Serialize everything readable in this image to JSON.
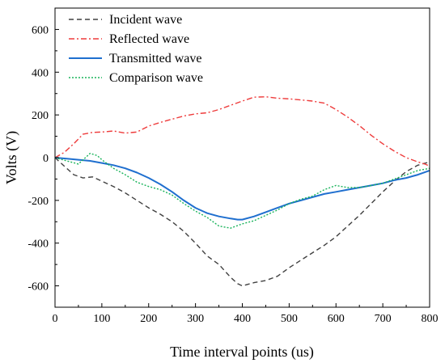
{
  "chart_data": {
    "type": "line",
    "xlabel": "Time interval points (us)",
    "ylabel": "Volts (V)",
    "xlim": [
      0,
      800
    ],
    "ylim": [
      -700,
      700
    ],
    "x_ticks": [
      0,
      100,
      200,
      300,
      400,
      500,
      600,
      700,
      800
    ],
    "y_ticks": [
      -600,
      -400,
      -200,
      0,
      200,
      400,
      600
    ],
    "grid": false,
    "legend_position": "top-center",
    "series": [
      {
        "name": "Incident wave",
        "color": "#404040",
        "dash": "dashed",
        "x": [
          0,
          20,
          40,
          60,
          80,
          100,
          125,
          150,
          175,
          200,
          225,
          250,
          275,
          300,
          325,
          350,
          375,
          390,
          400,
          425,
          450,
          475,
          500,
          525,
          550,
          575,
          600,
          625,
          650,
          675,
          700,
          725,
          750,
          775,
          800
        ],
        "y": [
          0,
          -40,
          -80,
          -95,
          -90,
          -110,
          -135,
          -165,
          -200,
          -235,
          -265,
          -300,
          -345,
          -400,
          -460,
          -500,
          -560,
          -590,
          -600,
          -585,
          -575,
          -555,
          -515,
          -480,
          -445,
          -410,
          -370,
          -320,
          -270,
          -215,
          -160,
          -110,
          -65,
          -35,
          -20
        ]
      },
      {
        "name": "Reflected wave",
        "color": "#ee3b3b",
        "dash": "dashdot",
        "x": [
          0,
          20,
          40,
          60,
          80,
          100,
          125,
          150,
          175,
          200,
          225,
          250,
          275,
          300,
          325,
          350,
          375,
          400,
          425,
          450,
          475,
          500,
          525,
          550,
          575,
          600,
          625,
          650,
          675,
          700,
          725,
          750,
          775,
          790,
          800
        ],
        "y": [
          0,
          25,
          65,
          110,
          118,
          120,
          125,
          115,
          120,
          148,
          165,
          180,
          195,
          205,
          210,
          225,
          245,
          265,
          283,
          285,
          278,
          275,
          270,
          265,
          255,
          225,
          190,
          150,
          105,
          65,
          30,
          0,
          -20,
          -30,
          -40
        ]
      },
      {
        "name": "Transmitted wave",
        "color": "#1f6fcf",
        "dash": "solid",
        "x": [
          0,
          25,
          50,
          75,
          100,
          125,
          150,
          175,
          200,
          225,
          250,
          275,
          300,
          325,
          350,
          375,
          390,
          400,
          425,
          450,
          475,
          500,
          525,
          550,
          575,
          600,
          625,
          650,
          675,
          700,
          725,
          750,
          775,
          800
        ],
        "y": [
          0,
          -5,
          -10,
          -15,
          -25,
          -35,
          -50,
          -70,
          -95,
          -125,
          -160,
          -200,
          -235,
          -260,
          -275,
          -285,
          -290,
          -290,
          -275,
          -255,
          -235,
          -215,
          -200,
          -185,
          -170,
          -160,
          -150,
          -140,
          -130,
          -120,
          -105,
          -95,
          -80,
          -60
        ]
      },
      {
        "name": "Comparison wave",
        "color": "#18b35a",
        "dash": "dotted",
        "x": [
          0,
          25,
          50,
          65,
          75,
          90,
          100,
          125,
          150,
          175,
          200,
          225,
          250,
          275,
          300,
          325,
          350,
          375,
          400,
          425,
          450,
          475,
          500,
          525,
          550,
          575,
          600,
          625,
          650,
          675,
          700,
          725,
          750,
          775,
          800
        ],
        "y": [
          0,
          -15,
          -30,
          0,
          20,
          10,
          -10,
          -50,
          -80,
          -115,
          -135,
          -150,
          -175,
          -215,
          -250,
          -280,
          -320,
          -330,
          -310,
          -295,
          -270,
          -245,
          -215,
          -195,
          -180,
          -150,
          -130,
          -140,
          -140,
          -130,
          -120,
          -100,
          -80,
          -60,
          -50
        ]
      }
    ]
  }
}
